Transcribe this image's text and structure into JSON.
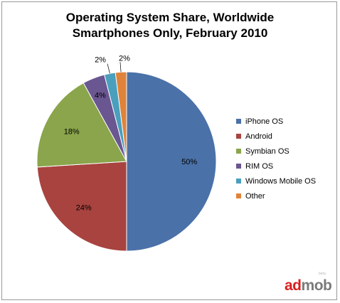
{
  "chart_data": {
    "type": "pie",
    "title_lines": [
      "Operating System Share, Worldwide",
      "Smartphones Only, February 2010"
    ],
    "legend_position": "right",
    "slices": [
      {
        "name": "iPhone OS",
        "value": 50,
        "label": "50%",
        "color": "#4a71a8"
      },
      {
        "name": "Android",
        "value": 24,
        "label": "24%",
        "color": "#a8433f"
      },
      {
        "name": "Symbian OS",
        "value": 18,
        "label": "18%",
        "color": "#8aa54b"
      },
      {
        "name": "RIM OS",
        "value": 4,
        "label": "4%",
        "color": "#6a5690"
      },
      {
        "name": "Windows Mobile OS",
        "value": 2,
        "label": "2%",
        "color": "#4a9fbd"
      },
      {
        "name": "Other",
        "value": 2,
        "label": "2%",
        "color": "#e0833a"
      }
    ]
  },
  "branding": {
    "logo_ad": "ad",
    "logo_mob": "mob",
    "logo_tag": "beta"
  }
}
